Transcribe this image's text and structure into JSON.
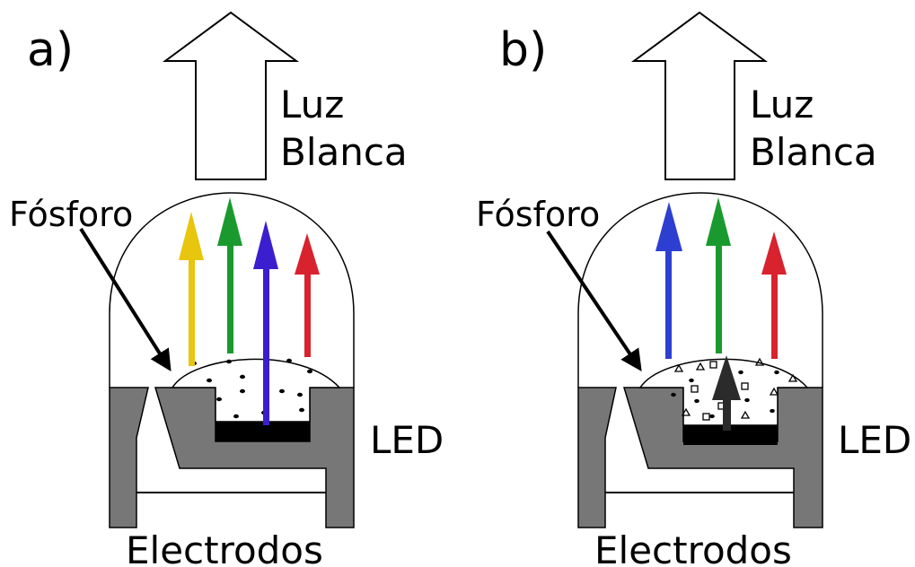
{
  "panels": [
    {
      "id": "a",
      "panel_label": "a)",
      "output_label_line1": "Luz",
      "output_label_line2": "Blanca",
      "phosphor_label": "Fósforo",
      "led_label": "LED",
      "electrodes_label": "Electrodos",
      "ray_colors": [
        "#e8c50f",
        "#1a9a2e",
        "#3b1fcf",
        "#d8222e"
      ]
    },
    {
      "id": "b",
      "panel_label": "b)",
      "output_label_line1": "Luz",
      "output_label_line2": "Blanca",
      "phosphor_label": "Fósforo",
      "led_label": "LED",
      "electrodes_label": "Electrodos",
      "ray_colors": [
        "#2d3fd0",
        "#1a9a2e",
        "#d8222e",
        "#2b2b2b"
      ]
    }
  ],
  "colors": {
    "housing": "#777777",
    "outline": "#000000",
    "chip": "#000000",
    "background": "#ffffff"
  }
}
